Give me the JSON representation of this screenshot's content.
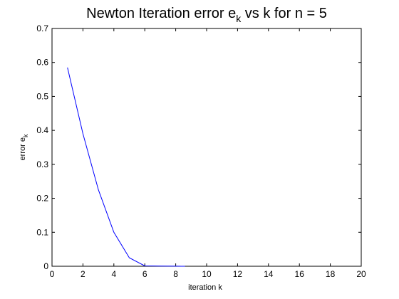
{
  "chart_data": {
    "type": "line",
    "title": {
      "main": "Newton Iteration error e",
      "sub": "k",
      "rest": " vs k for n = 5"
    },
    "xlabel": "iteration k",
    "ylabel": {
      "main": "error e",
      "sub": "k"
    },
    "xlim": [
      0,
      20
    ],
    "ylim": [
      0,
      0.7
    ],
    "xticks": [
      0,
      2,
      4,
      6,
      8,
      10,
      12,
      14,
      16,
      18,
      20
    ],
    "xtick_labels": [
      "0",
      "2",
      "4",
      "6",
      "8",
      "10",
      "12",
      "14",
      "16",
      "18",
      "20"
    ],
    "yticks": [
      0,
      0.1,
      0.2,
      0.3,
      0.4,
      0.5,
      0.6,
      0.7
    ],
    "ytick_labels": [
      "0",
      "0.1",
      "0.2",
      "0.3",
      "0.4",
      "0.5",
      "0.6",
      "0.7"
    ],
    "grid": false,
    "series": [
      {
        "color": "#0000ff",
        "x": [
          1,
          2,
          3,
          4,
          5,
          6,
          7,
          8,
          8.6
        ],
        "y": [
          0.585,
          0.39,
          0.225,
          0.1,
          0.025,
          0.001,
          0.0005,
          0.0002,
          0.0001
        ]
      }
    ]
  }
}
